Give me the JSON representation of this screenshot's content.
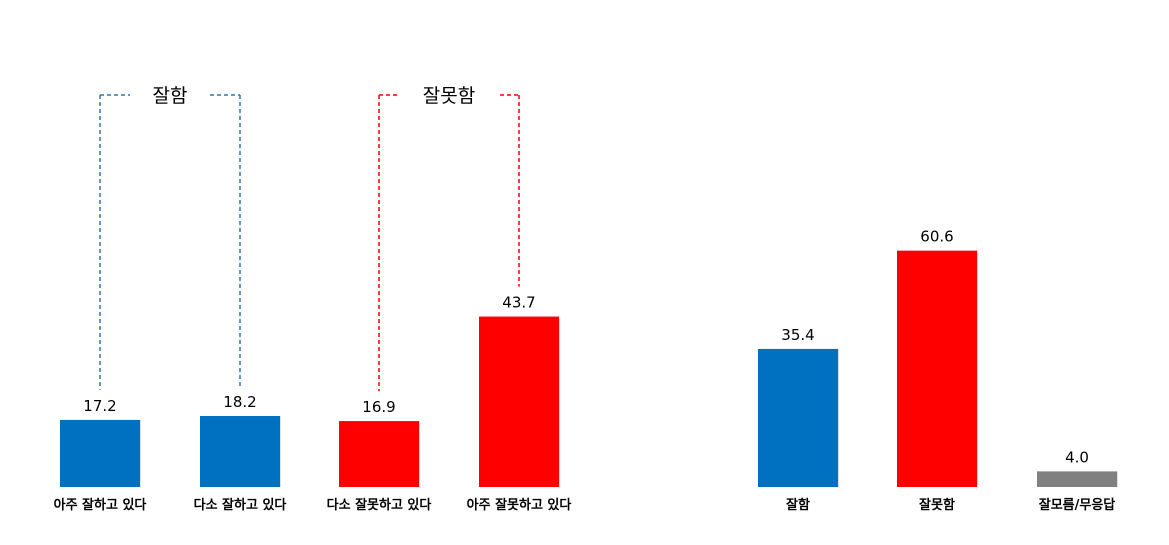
{
  "chart_data": [
    {
      "type": "bar",
      "categories": [
        "아주 잘하고 있다",
        "다소 잘하고 있다",
        "다소 잘못하고 있다",
        "아주 잘못하고 있다"
      ],
      "values": [
        17.2,
        18.2,
        16.9,
        43.7
      ],
      "value_labels": [
        "17.2",
        "18.2",
        "16.9",
        "43.7"
      ],
      "colors": [
        "#0070C0",
        "#0070C0",
        "#FF0000",
        "#FF0000"
      ],
      "groups": [
        {
          "label": "잘함",
          "members": [
            0,
            1
          ],
          "color": "#2E75B6"
        },
        {
          "label": "잘못함",
          "members": [
            2,
            3
          ],
          "color": "#FF0000"
        }
      ],
      "title": "",
      "xlabel": "",
      "ylabel": "",
      "grid": false
    },
    {
      "type": "bar",
      "categories": [
        "잘함",
        "잘못함",
        "잘모름/무응답"
      ],
      "values": [
        35.4,
        60.6,
        4.0
      ],
      "value_labels": [
        "35.4",
        "60.6",
        "4.0"
      ],
      "colors": [
        "#0070C0",
        "#FF0000",
        "#808080"
      ],
      "title": "",
      "xlabel": "",
      "ylabel": "",
      "grid": false
    }
  ]
}
